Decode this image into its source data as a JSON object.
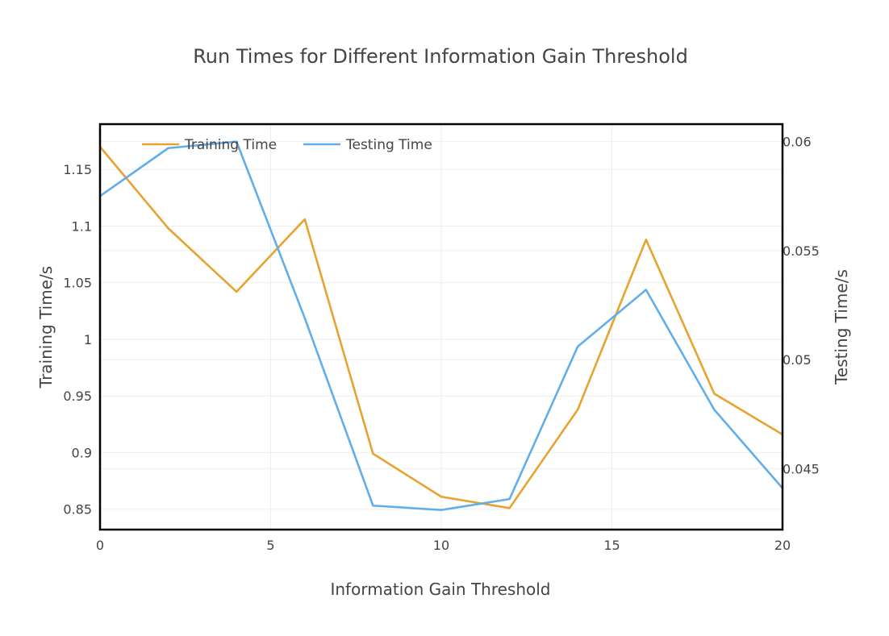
{
  "chart_data": {
    "type": "line",
    "title": "Run Times for Different Information Gain Threshold",
    "xlabel": "Information Gain Threshold",
    "ylabel": "Training Time/s",
    "y2label": "Testing Time/s",
    "xlim": [
      0,
      20
    ],
    "ylim": [
      0.832,
      1.19
    ],
    "y2lim": [
      0.0422,
      0.0608
    ],
    "xticks": [
      0,
      5,
      10,
      15,
      20
    ],
    "xtick_labels": [
      "0",
      "5",
      "10",
      "15",
      "20"
    ],
    "yticks": [
      0.85,
      0.9,
      0.95,
      1.0,
      1.05,
      1.1,
      1.15
    ],
    "ytick_labels": [
      "0.85",
      "0.9",
      "0.95",
      "1",
      "1.05",
      "1.1",
      "1.15"
    ],
    "y2ticks": [
      0.045,
      0.05,
      0.055,
      0.06
    ],
    "y2tick_labels": [
      "0.045",
      "0.05",
      "0.055",
      "0.06"
    ],
    "grid": true,
    "legend_position": "top-left",
    "x": [
      0,
      2,
      4,
      6,
      8,
      10,
      12,
      14,
      16,
      18,
      20
    ],
    "series": [
      {
        "name": "Training Time",
        "axis": "left",
        "color": "#e6a32e",
        "values": [
          1.17,
          1.098,
          1.042,
          1.106,
          0.899,
          0.861,
          0.851,
          0.938,
          1.088,
          0.952,
          0.916
        ]
      },
      {
        "name": "Testing Time",
        "axis": "right",
        "color": "#62aeea",
        "values": [
          0.0575,
          0.0597,
          0.06,
          0.0519,
          0.0433,
          0.0431,
          0.0436,
          0.0506,
          0.0532,
          0.0477,
          0.0441
        ]
      }
    ]
  }
}
